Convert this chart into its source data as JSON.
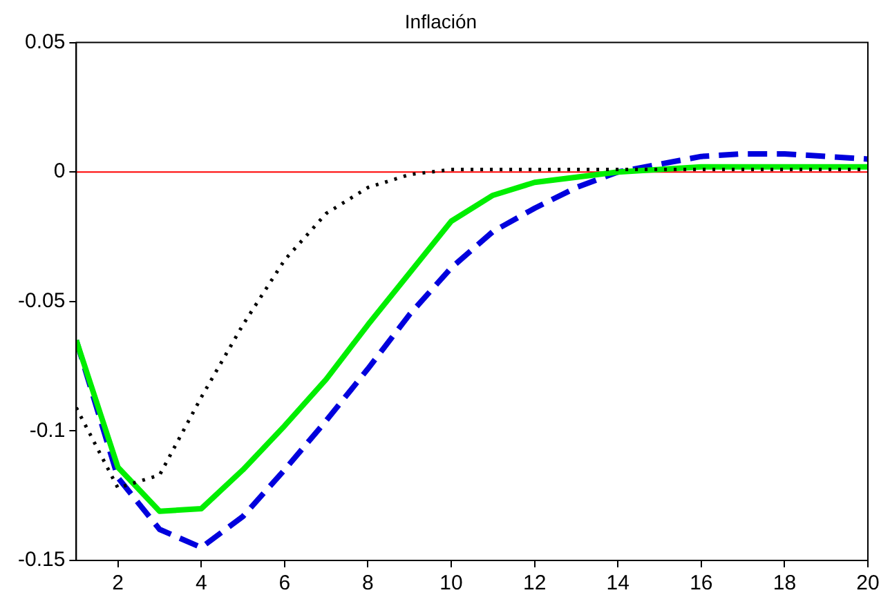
{
  "chart_data": {
    "type": "line",
    "title": "Inflación",
    "x": [
      1,
      2,
      3,
      4,
      5,
      6,
      7,
      8,
      9,
      10,
      11,
      12,
      13,
      14,
      15,
      16,
      17,
      18,
      19,
      20
    ],
    "series": [
      {
        "color": "#000000",
        "line_style": "dotted",
        "values": [
          -0.091,
          -0.122,
          -0.117,
          -0.087,
          -0.059,
          -0.034,
          -0.016,
          -0.006,
          -0.001,
          0.001,
          0.001,
          0.001,
          0.001,
          0.001,
          0.001,
          0.001,
          0.001,
          0.001,
          0.001,
          0.001
        ]
      },
      {
        "color": "#00ee00",
        "line_style": "solid",
        "values": [
          -0.065,
          -0.114,
          -0.131,
          -0.13,
          -0.115,
          -0.098,
          -0.08,
          -0.059,
          -0.039,
          -0.019,
          -0.009,
          -0.004,
          -0.002,
          0,
          0.001,
          0.002,
          0.002,
          0.002,
          0.002,
          0.002
        ]
      },
      {
        "color": "#0000dd",
        "line_style": "dashed",
        "values": [
          -0.065,
          -0.118,
          -0.138,
          -0.145,
          -0.133,
          -0.115,
          -0.096,
          -0.076,
          -0.055,
          -0.037,
          -0.023,
          -0.014,
          -0.006,
          0,
          0.003,
          0.006,
          0.007,
          0.007,
          0.006,
          0.005
        ]
      }
    ],
    "xlim": [
      1,
      20
    ],
    "xticks": [
      2,
      4,
      6,
      8,
      10,
      12,
      14,
      16,
      18,
      20
    ],
    "ylim": [
      -0.15,
      0.05
    ],
    "yticks": [
      -0.15,
      -0.1,
      -0.05,
      0,
      0.05
    ],
    "ref_lines": [
      {
        "axis": "y",
        "value": 0,
        "color": "#ff0000"
      }
    ],
    "grid": false,
    "legend": false,
    "marker": "none"
  }
}
